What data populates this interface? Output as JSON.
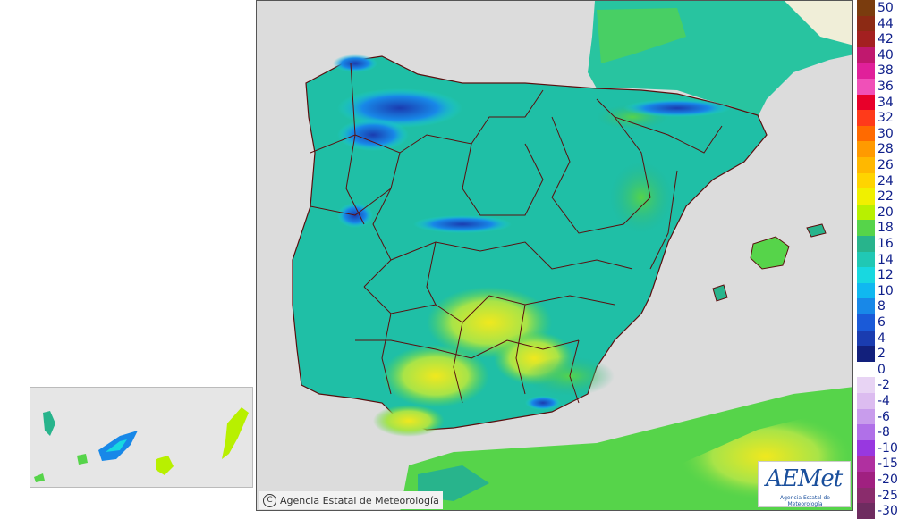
{
  "map": {
    "region": "Iberian Peninsula",
    "copyright_symbol": "C",
    "copyright": "Agencia Estatal de Meteorología",
    "logo": {
      "wordmark": "AEMet",
      "subtitle": "Agencia Estatal de Meteorología"
    }
  },
  "colors": {
    "sea": "#dcdcdc",
    "outside_land": "#ffffff",
    "border": "#5a0f0f",
    "dominant_land": "#1fbfa6"
  },
  "legend": {
    "entries": [
      {
        "label": "50",
        "color": "#7a3c0e"
      },
      {
        "label": "44",
        "color": "#8c2a14"
      },
      {
        "label": "42",
        "color": "#a32020"
      },
      {
        "label": "40",
        "color": "#c0186e"
      },
      {
        "label": "38",
        "color": "#e0209a"
      },
      {
        "label": "36",
        "color": "#f050b8"
      },
      {
        "label": "34",
        "color": "#e8002a"
      },
      {
        "label": "32",
        "color": "#ff3a1a"
      },
      {
        "label": "30",
        "color": "#ff6a00"
      },
      {
        "label": "28",
        "color": "#ff9a00"
      },
      {
        "label": "26",
        "color": "#ffb800"
      },
      {
        "label": "24",
        "color": "#ffd400"
      },
      {
        "label": "22",
        "color": "#f0f000"
      },
      {
        "label": "20",
        "color": "#b8f000"
      },
      {
        "label": "18",
        "color": "#56d44a"
      },
      {
        "label": "16",
        "color": "#28b48c"
      },
      {
        "label": "14",
        "color": "#20c8b4"
      },
      {
        "label": "12",
        "color": "#18d8e0"
      },
      {
        "label": "10",
        "color": "#10b8f0"
      },
      {
        "label": "8",
        "color": "#1888e8"
      },
      {
        "label": "6",
        "color": "#1a5ad8"
      },
      {
        "label": "4",
        "color": "#1a3cb0"
      },
      {
        "label": "2",
        "color": "#12207c"
      },
      {
        "label": "0",
        "color": "#ffffff"
      },
      {
        "label": "-2",
        "color": "#e8d4f4"
      },
      {
        "label": "-4",
        "color": "#dcbcf0"
      },
      {
        "label": "-6",
        "color": "#c89cec"
      },
      {
        "label": "-8",
        "color": "#b070e8"
      },
      {
        "label": "-10",
        "color": "#9838e0"
      },
      {
        "label": "-15",
        "color": "#b030a0"
      },
      {
        "label": "-20",
        "color": "#a02080"
      },
      {
        "label": "-25",
        "color": "#8a2c6c"
      },
      {
        "label": "-30",
        "color": "#6e2c60"
      }
    ]
  }
}
